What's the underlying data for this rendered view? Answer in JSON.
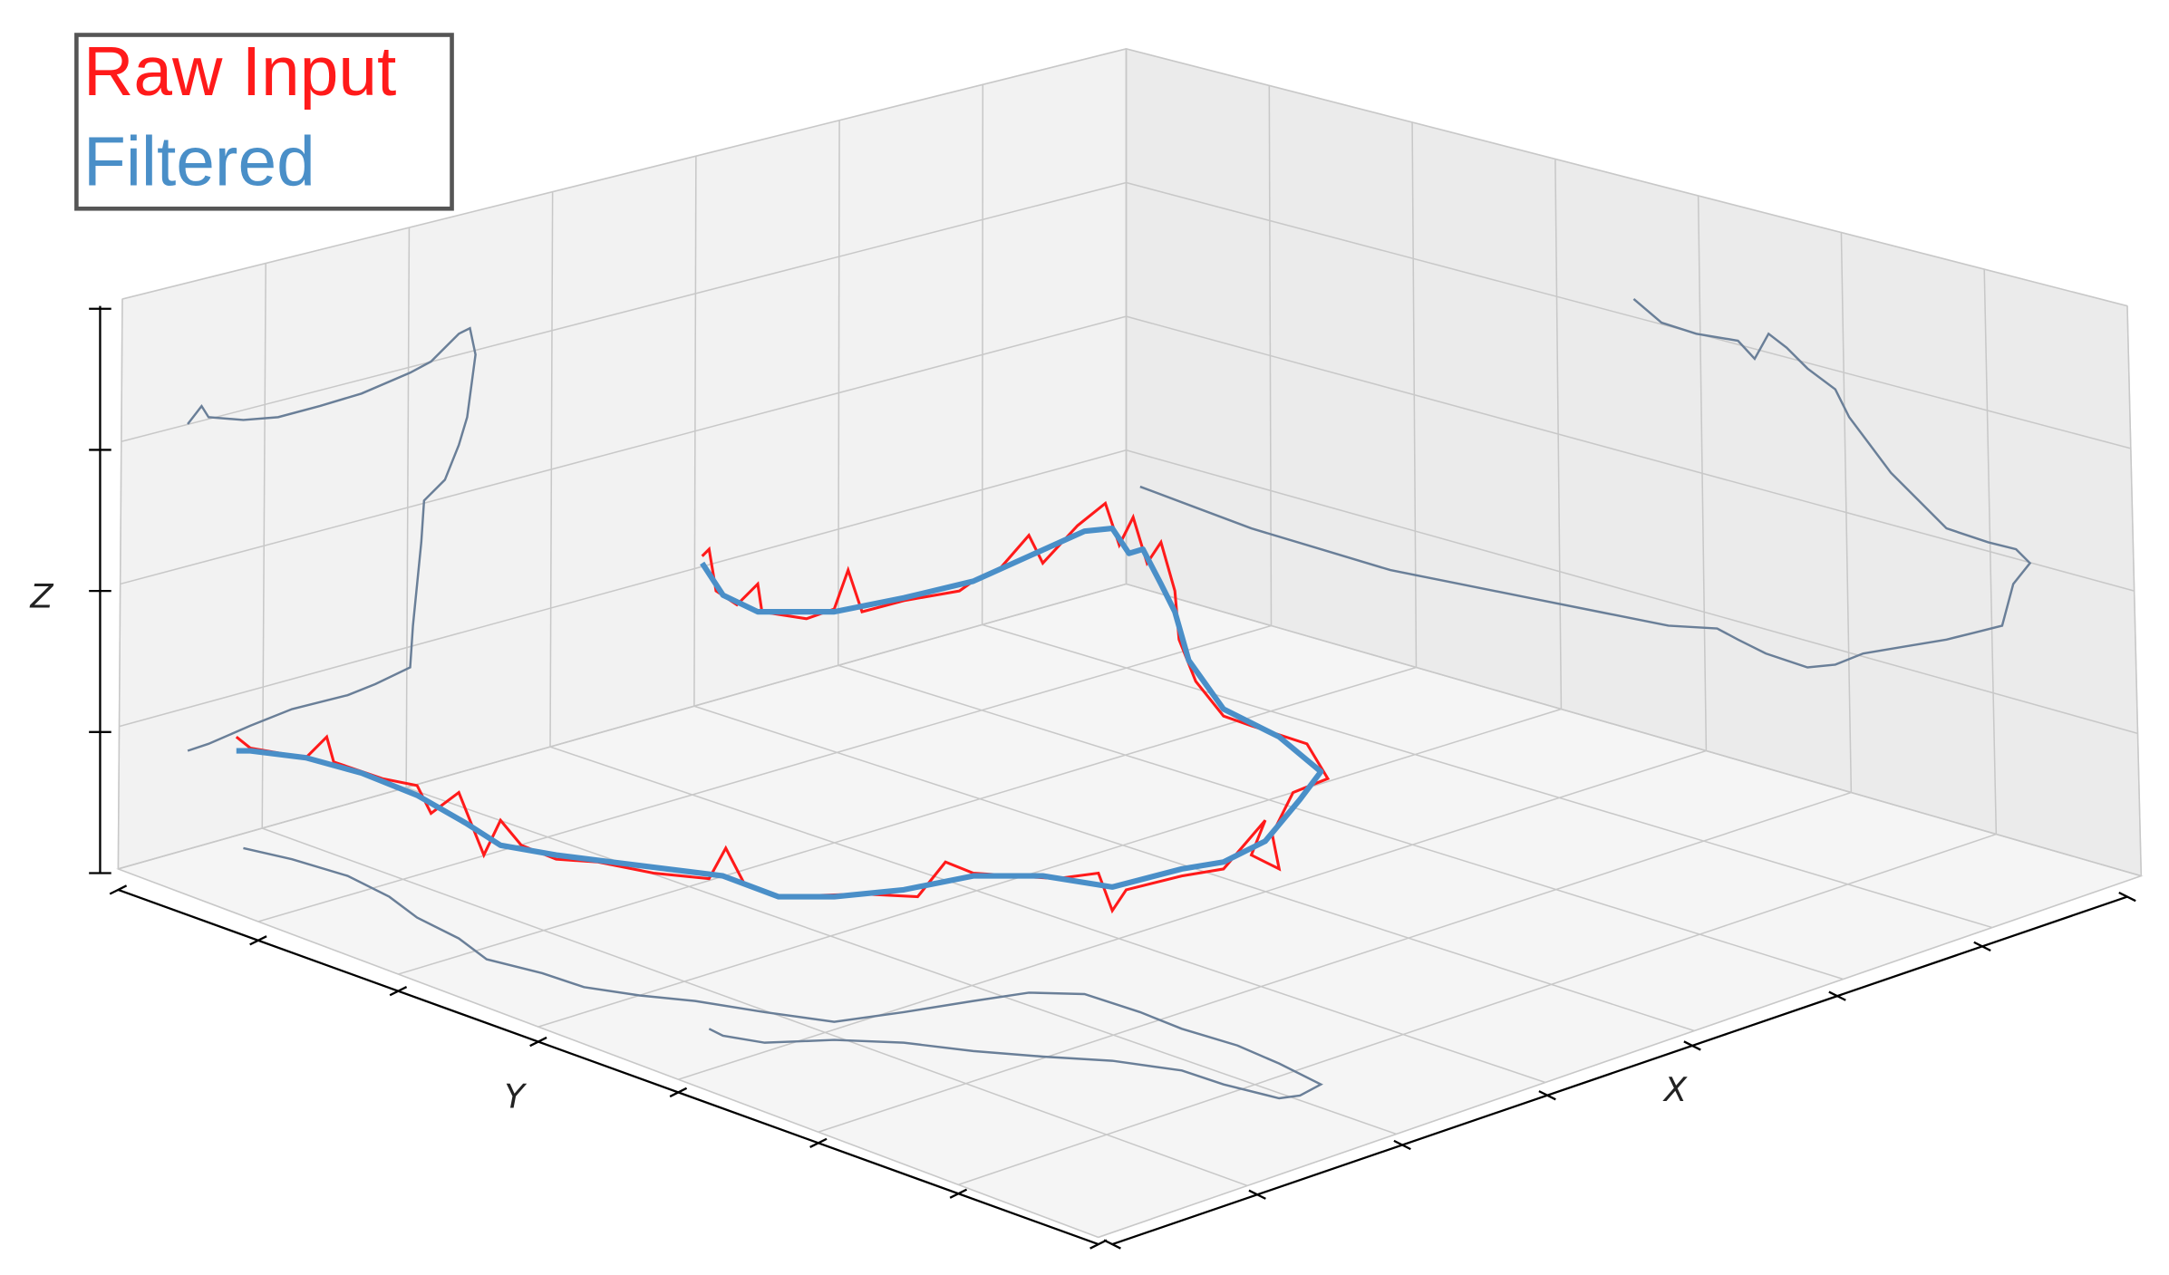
{
  "chart_data": {
    "type": "line3d",
    "series": [
      {
        "name": "Raw Input",
        "color": "#ff1a1a"
      },
      {
        "name": "Filtered",
        "color": "#4a8fc8"
      }
    ],
    "xlabel": "X",
    "ylabel": "Y",
    "zlabel": "Z",
    "grid": true
  }
}
